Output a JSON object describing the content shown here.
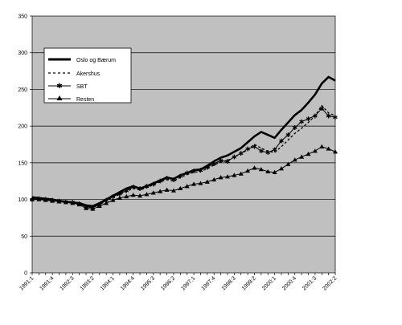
{
  "chart_data": {
    "type": "line",
    "title": "",
    "xlabel": "",
    "ylabel": "",
    "ylim": [
      0,
      350
    ],
    "yticks": [
      0,
      50,
      100,
      150,
      200,
      250,
      300,
      350
    ],
    "grid": true,
    "background_color": "#c0c0c0",
    "legend_position": "top-left",
    "xticklabels": [
      "1991:1",
      "1991:4",
      "1992:3",
      "1993:2",
      "1994:1",
      "1994:4",
      "1995:3",
      "1996:2",
      "1997:1",
      "1997:4",
      "1998:3",
      "1999:2",
      "2000:1",
      "2000:4",
      "2001:3",
      "2002:2"
    ],
    "x": [
      "1991:1",
      "1991:2",
      "1991:3",
      "1991:4",
      "1992:1",
      "1992:2",
      "1992:3",
      "1992:4",
      "1993:1",
      "1993:2",
      "1993:3",
      "1993:4",
      "1994:1",
      "1994:2",
      "1994:3",
      "1994:4",
      "1995:1",
      "1995:2",
      "1995:3",
      "1995:4",
      "1996:1",
      "1996:2",
      "1996:3",
      "1996:4",
      "1997:1",
      "1997:2",
      "1997:3",
      "1997:4",
      "1998:1",
      "1998:2",
      "1998:3",
      "1998:4",
      "1999:1",
      "1999:2",
      "1999:3",
      "1999:4",
      "2000:1",
      "2000:2",
      "2000:3",
      "2000:4",
      "2001:1",
      "2001:2",
      "2001:3",
      "2001:4",
      "2002:1",
      "2002:2"
    ],
    "series": [
      {
        "name": "Oslo og Bærum",
        "color": "#000000",
        "style": "thick",
        "values": [
          103,
          102,
          101,
          100,
          98,
          97,
          96,
          95,
          92,
          91,
          95,
          100,
          105,
          110,
          115,
          118,
          115,
          118,
          122,
          126,
          130,
          128,
          133,
          136,
          140,
          141,
          146,
          152,
          157,
          160,
          165,
          170,
          178,
          186,
          192,
          188,
          184,
          195,
          205,
          215,
          222,
          232,
          243,
          258,
          267,
          262
        ]
      },
      {
        "name": "Akershus",
        "color": "#000000",
        "style": "dashed",
        "values": [
          102,
          101,
          100,
          99,
          98,
          97,
          96,
          94,
          90,
          89,
          93,
          98,
          103,
          107,
          111,
          115,
          113,
          116,
          120,
          124,
          127,
          125,
          130,
          134,
          137,
          138,
          142,
          147,
          151,
          153,
          158,
          162,
          168,
          175,
          170,
          166,
          164,
          172,
          181,
          190,
          197,
          205,
          214,
          228,
          218,
          214
        ]
      },
      {
        "name": "SBT",
        "color": "#000000",
        "style": "star",
        "values": [
          100,
          101,
          100,
          99,
          98,
          97,
          96,
          94,
          90,
          89,
          93,
          99,
          104,
          108,
          112,
          117,
          115,
          118,
          121,
          125,
          129,
          127,
          132,
          136,
          139,
          140,
          144,
          149,
          153,
          152,
          158,
          163,
          169,
          172,
          166,
          164,
          168,
          180,
          188,
          198,
          206,
          210,
          214,
          224,
          214,
          212
        ]
      },
      {
        "name": "Resten",
        "color": "#000000",
        "style": "triangle",
        "values": [
          100,
          100,
          99,
          98,
          97,
          96,
          95,
          93,
          88,
          87,
          91,
          95,
          99,
          102,
          104,
          106,
          105,
          107,
          109,
          111,
          113,
          112,
          115,
          118,
          121,
          122,
          124,
          127,
          130,
          131,
          133,
          135,
          139,
          143,
          141,
          138,
          137,
          142,
          148,
          154,
          158,
          162,
          166,
          172,
          169,
          165
        ]
      }
    ]
  }
}
